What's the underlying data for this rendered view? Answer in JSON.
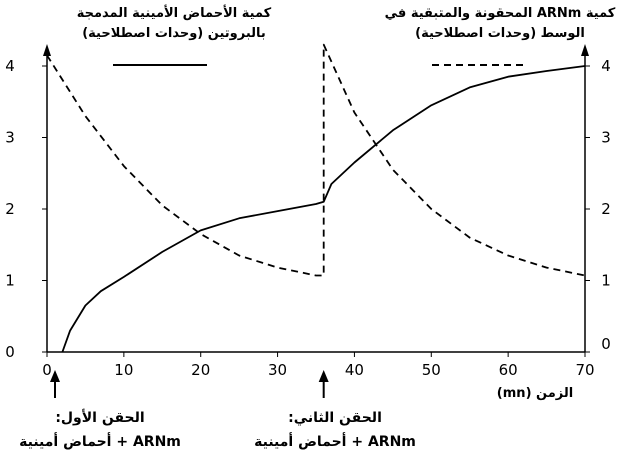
{
  "chart_data": {
    "type": "line",
    "x": {
      "xlabel": "الزمن (mn)",
      "xlim": [
        0,
        70
      ],
      "xticks": [
        "0",
        "10",
        "20",
        "30",
        "40",
        "50",
        "60",
        "70"
      ]
    },
    "yleft": {
      "ylim": [
        0,
        4
      ],
      "yticks": [
        "0",
        "1",
        "2",
        "3",
        "4"
      ]
    },
    "yright": {
      "ylim": [
        0,
        4
      ],
      "yticks": [
        "0",
        "1",
        "2",
        "3",
        "4"
      ]
    },
    "grid": false,
    "series": [
      {
        "name": "كمية الأحماض الأمينية المدمجة بالبروتين (وحدات اصطلاحية)",
        "style": "solid",
        "color": "#000000",
        "points": [
          [
            2,
            0
          ],
          [
            3,
            0.3
          ],
          [
            5,
            0.65
          ],
          [
            7,
            0.85
          ],
          [
            10,
            1.05
          ],
          [
            15,
            1.4
          ],
          [
            20,
            1.7
          ],
          [
            25,
            1.87
          ],
          [
            30,
            1.97
          ],
          [
            35,
            2.07
          ],
          [
            36,
            2.1
          ],
          [
            37,
            2.35
          ],
          [
            40,
            2.65
          ],
          [
            45,
            3.1
          ],
          [
            50,
            3.45
          ],
          [
            55,
            3.7
          ],
          [
            60,
            3.85
          ],
          [
            65,
            3.93
          ],
          [
            70,
            4.0
          ]
        ]
      },
      {
        "name": "كمية ARNm المحقونة والمتبقية في الوسط (وحدات اصطلاحية)",
        "style": "dashed",
        "color": "#000000",
        "points": [
          [
            0,
            4.15
          ],
          [
            5,
            3.3
          ],
          [
            10,
            2.6
          ],
          [
            15,
            2.05
          ],
          [
            20,
            1.65
          ],
          [
            25,
            1.35
          ],
          [
            30,
            1.18
          ],
          [
            35,
            1.07
          ],
          [
            36,
            1.07
          ],
          [
            36,
            4.3
          ],
          [
            40,
            3.35
          ],
          [
            45,
            2.55
          ],
          [
            50,
            2.0
          ],
          [
            55,
            1.6
          ],
          [
            60,
            1.35
          ],
          [
            65,
            1.18
          ],
          [
            70,
            1.07
          ]
        ]
      }
    ],
    "injections": [
      {
        "x": 0,
        "label_line1": "الحقن الأول:",
        "label_line2": "ARNm + أحماض أمينية"
      },
      {
        "x": 36,
        "label_line1": "الحقن الثاني:",
        "label_line2": "ARNm + أحماض أمينية"
      }
    ]
  },
  "legend": {
    "left_line1": "كمية الأحماض الأمينية المدمجة",
    "left_line2": "بالبروتين (وحدات اصطلاحية)",
    "right_line1": "كمية ARNm المحقونة والمتبقية في",
    "right_line2": "الوسط (وحدات اصطلاحية)"
  }
}
